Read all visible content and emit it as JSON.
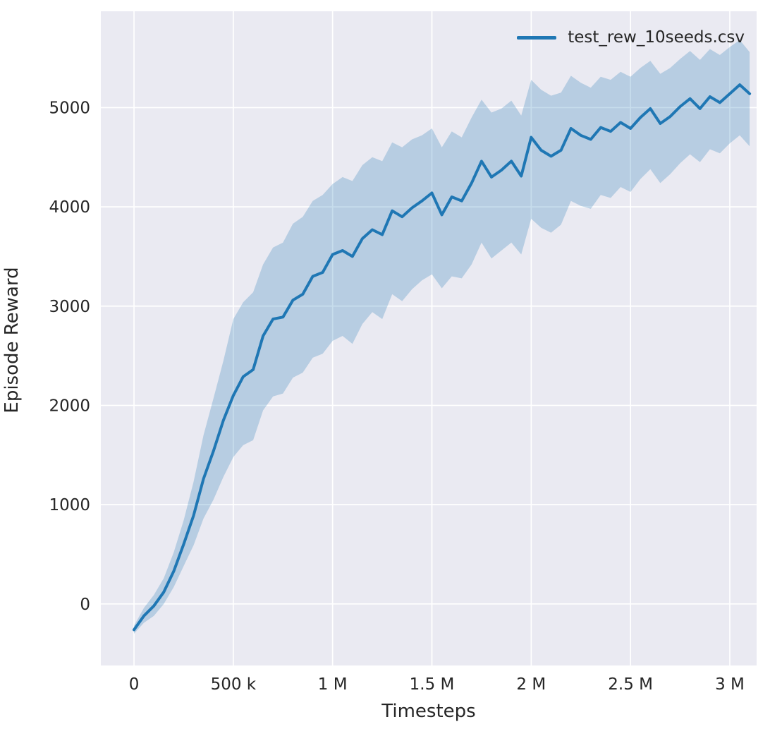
{
  "chart_data": {
    "type": "line",
    "title": "",
    "xlabel": "Timesteps",
    "ylabel": "Episode Reward",
    "legend": [
      {
        "label": "test_rew_10seeds.csv",
        "color": "#1f77b4"
      }
    ],
    "legend_position": "upper right",
    "grid": true,
    "plot_bg": "#eaeaf2",
    "grid_color": "#ffffff",
    "xlim": [
      -167000,
      3135000
    ],
    "ylim": [
      -620,
      5970
    ],
    "x_ticks": [
      0,
      500000,
      1000000,
      1500000,
      2000000,
      2500000,
      3000000
    ],
    "x_tick_labels": [
      "0",
      "500 k",
      "1 M",
      "1.5 M",
      "2 M",
      "2.5 M",
      "3 M"
    ],
    "y_ticks": [
      0,
      1000,
      2000,
      3000,
      4000,
      5000
    ],
    "y_tick_labels": [
      "0",
      "1000",
      "2000",
      "3000",
      "4000",
      "5000"
    ],
    "x": [
      0,
      50000,
      100000,
      150000,
      200000,
      250000,
      300000,
      350000,
      400000,
      450000,
      500000,
      550000,
      600000,
      650000,
      700000,
      750000,
      800000,
      850000,
      900000,
      950000,
      1000000,
      1050000,
      1100000,
      1150000,
      1200000,
      1250000,
      1300000,
      1350000,
      1400000,
      1450000,
      1500000,
      1550000,
      1600000,
      1650000,
      1700000,
      1750000,
      1800000,
      1850000,
      1900000,
      1950000,
      2000000,
      2050000,
      2100000,
      2150000,
      2200000,
      2250000,
      2300000,
      2350000,
      2400000,
      2450000,
      2500000,
      2550000,
      2600000,
      2650000,
      2700000,
      2750000,
      2800000,
      2850000,
      2900000,
      2950000,
      3000000,
      3050000,
      3100000
    ],
    "series": [
      {
        "name": "test_rew_10seeds.csv",
        "color": "#1f77b4",
        "band_opacity": 0.25,
        "line_width": 4,
        "mean": [
          -260,
          -120,
          -20,
          120,
          330,
          600,
          890,
          1260,
          1540,
          1850,
          2100,
          2290,
          2360,
          2700,
          2870,
          2890,
          3060,
          3120,
          3300,
          3340,
          3520,
          3560,
          3500,
          3680,
          3770,
          3720,
          3960,
          3900,
          3990,
          4060,
          4140,
          3920,
          4100,
          4060,
          4240,
          4460,
          4300,
          4370,
          4460,
          4310,
          4700,
          4570,
          4510,
          4570,
          4790,
          4720,
          4680,
          4800,
          4760,
          4850,
          4790,
          4900,
          4990,
          4840,
          4910,
          5010,
          5090,
          4990,
          5110,
          5050,
          5140,
          5230,
          5140
        ],
        "lower": [
          -300,
          -190,
          -120,
          0,
          170,
          380,
          590,
          860,
          1050,
          1280,
          1480,
          1600,
          1650,
          1950,
          2090,
          2120,
          2280,
          2330,
          2480,
          2520,
          2650,
          2700,
          2620,
          2820,
          2940,
          2870,
          3120,
          3050,
          3170,
          3260,
          3320,
          3180,
          3300,
          3280,
          3420,
          3640,
          3480,
          3560,
          3640,
          3520,
          3880,
          3790,
          3740,
          3820,
          4060,
          4010,
          3980,
          4120,
          4090,
          4200,
          4150,
          4280,
          4380,
          4240,
          4330,
          4440,
          4530,
          4450,
          4580,
          4540,
          4640,
          4720,
          4610
        ],
        "upper": [
          -220,
          -40,
          90,
          260,
          520,
          840,
          1230,
          1700,
          2070,
          2450,
          2870,
          3040,
          3140,
          3420,
          3590,
          3640,
          3830,
          3900,
          4060,
          4120,
          4230,
          4300,
          4260,
          4420,
          4500,
          4460,
          4650,
          4600,
          4680,
          4720,
          4790,
          4600,
          4760,
          4700,
          4900,
          5080,
          4950,
          4990,
          5070,
          4920,
          5280,
          5180,
          5120,
          5150,
          5320,
          5250,
          5200,
          5310,
          5280,
          5360,
          5310,
          5400,
          5470,
          5340,
          5400,
          5490,
          5570,
          5480,
          5590,
          5530,
          5610,
          5680,
          5560
        ]
      }
    ]
  }
}
